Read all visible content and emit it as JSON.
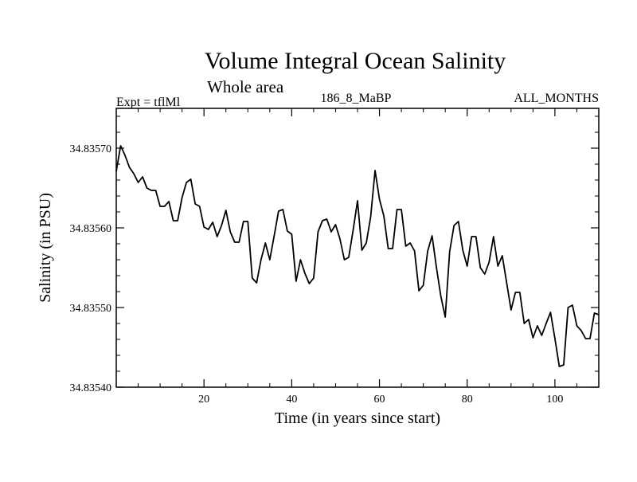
{
  "chart_data": {
    "type": "line",
    "title": "Volume Integral Ocean Salinity",
    "subtitle": "Whole area",
    "header_left": "Expt = tflMl",
    "header_center": "186_8_MaBP",
    "header_right": "ALL_MONTHS",
    "xlabel": "Time (in years since start)",
    "ylabel": "Salinity (in PSU)",
    "xlim": [
      0,
      110
    ],
    "ylim": [
      34.8354,
      34.83575
    ],
    "xticks": [
      20,
      40,
      60,
      80,
      100
    ],
    "yticks": [
      34.8354,
      34.8355,
      34.8356,
      34.8357
    ],
    "ytick_labels": [
      "34.83540",
      "34.83550",
      "34.83560",
      "34.83570"
    ],
    "grid": false,
    "legend": "none",
    "series": [
      {
        "name": "Salinity",
        "color": "#000000",
        "x": [
          0,
          1,
          2,
          3,
          4,
          5,
          6,
          7,
          8,
          9,
          10,
          11,
          12,
          13,
          14,
          15,
          16,
          17,
          18,
          19,
          20,
          21,
          22,
          23,
          24,
          25,
          26,
          27,
          28,
          29,
          30,
          31,
          32,
          33,
          34,
          35,
          36,
          37,
          38,
          39,
          40,
          41,
          42,
          43,
          44,
          45,
          46,
          47,
          48,
          49,
          50,
          51,
          52,
          53,
          54,
          55,
          56,
          57,
          58,
          59,
          60,
          61,
          62,
          63,
          64,
          65,
          66,
          67,
          68,
          69,
          70,
          71,
          72,
          73,
          74,
          75,
          76,
          77,
          78,
          79,
          80,
          81,
          82,
          83,
          84,
          85,
          86,
          87,
          88,
          89,
          90,
          91,
          92,
          93,
          94,
          95,
          96,
          97,
          98,
          99,
          100,
          101,
          102,
          103,
          104,
          105,
          106,
          107,
          108,
          109,
          110
        ],
        "values": [
          34.835671,
          34.835703,
          34.835691,
          34.835676,
          34.835668,
          34.835657,
          34.835664,
          34.83565,
          34.835647,
          34.835647,
          34.835627,
          34.835627,
          34.835633,
          34.835609,
          34.835609,
          34.835638,
          34.835657,
          34.835661,
          34.83563,
          34.835627,
          34.835601,
          34.835598,
          34.835607,
          34.835589,
          34.835603,
          34.835622,
          34.835595,
          34.835582,
          34.835582,
          34.835608,
          34.835608,
          34.835537,
          34.835531,
          34.83556,
          34.835581,
          34.83556,
          34.83559,
          34.835621,
          34.835623,
          34.835596,
          34.835592,
          34.835533,
          34.83556,
          34.835543,
          34.83553,
          34.835537,
          34.835595,
          34.835609,
          34.835611,
          34.835595,
          34.835604,
          34.835586,
          34.83556,
          34.835563,
          34.835597,
          34.835634,
          34.835572,
          34.835581,
          34.835614,
          34.835672,
          34.835636,
          34.835615,
          34.835574,
          34.835574,
          34.835623,
          34.835623,
          34.835577,
          34.835581,
          34.835571,
          34.835521,
          34.835528,
          34.835571,
          34.83559,
          34.83555,
          34.835514,
          34.835488,
          34.83557,
          34.835603,
          34.835608,
          34.835572,
          34.835552,
          34.835589,
          34.835589,
          34.83555,
          34.835542,
          34.835557,
          34.835589,
          34.835552,
          34.835565,
          34.835531,
          34.835497,
          34.835519,
          34.835519,
          34.83548,
          34.835485,
          34.835462,
          34.835477,
          34.835465,
          34.83548,
          34.835494,
          34.835461,
          34.835426,
          34.835428,
          34.8355,
          34.835503,
          34.835477,
          34.835471,
          34.835461,
          34.835461,
          34.835493,
          34.835491
        ]
      }
    ]
  }
}
